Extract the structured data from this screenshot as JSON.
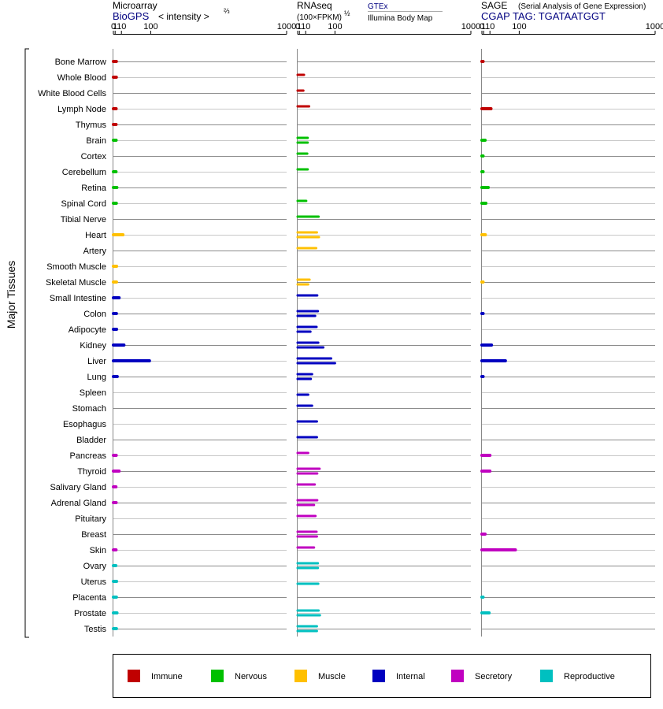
{
  "panels": [
    {
      "id": "microarray",
      "title": "Microarray",
      "subtitle": "BioGPS",
      "subtitle_extra": "< intensity >",
      "exponent": "⅔",
      "ticks": [
        "0",
        "1",
        "10",
        "100",
        "1000"
      ],
      "subtitle_color": "#000080"
    },
    {
      "id": "rnaseq",
      "title": "RNAseq",
      "subtitle": "(100×FPKM)",
      "exponent": "½",
      "source1": "GTEx",
      "source2": "Illumina Body Map",
      "ticks": [
        "0",
        "1",
        "10",
        "100",
        "1000"
      ]
    },
    {
      "id": "sage",
      "title": "SAGE",
      "title_note": "(Serial Analysis of Gene Expression)",
      "subtitle": "CGAP TAG: TGATAATGGT",
      "ticks": [
        "0",
        "1",
        "10",
        "100",
        "1000"
      ],
      "subtitle_color": "#000080"
    }
  ],
  "y_axis_label": "Major Tissues",
  "legend": [
    {
      "name": "Immune",
      "color": "#c00000"
    },
    {
      "name": "Nervous",
      "color": "#00c000"
    },
    {
      "name": "Muscle",
      "color": "#ffc000"
    },
    {
      "name": "Internal",
      "color": "#0000c0"
    },
    {
      "name": "Secretory",
      "color": "#c000c0"
    },
    {
      "name": "Reproductive",
      "color": "#00c0c0"
    }
  ],
  "chart_data": {
    "type": "bar",
    "orientation": "horizontal",
    "x_scale": "log-like (0, 1, 10, 100, 1000)",
    "xlim": [
      0,
      1000
    ],
    "categories": [
      "Bone Marrow",
      "Whole Blood",
      "White Blood Cells",
      "Lymph Node",
      "Thymus",
      "Brain",
      "Cortex",
      "Cerebellum",
      "Retina",
      "Spinal Cord",
      "Tibial Nerve",
      "Heart",
      "Artery",
      "Smooth Muscle",
      "Skeletal Muscle",
      "Small Intestine",
      "Colon",
      "Adipocyte",
      "Kidney",
      "Liver",
      "Lung",
      "Spleen",
      "Stomach",
      "Esophagus",
      "Bladder",
      "Pancreas",
      "Thyroid",
      "Salivary Gland",
      "Adrenal Gland",
      "Pituitary",
      "Breast",
      "Skin",
      "Ovary",
      "Uterus",
      "Placenta",
      "Prostate",
      "Testis"
    ],
    "category_groups": [
      "Immune",
      "Immune",
      "Immune",
      "Immune",
      "Immune",
      "Nervous",
      "Nervous",
      "Nervous",
      "Nervous",
      "Nervous",
      "Nervous",
      "Muscle",
      "Muscle",
      "Muscle",
      "Muscle",
      "Internal",
      "Internal",
      "Internal",
      "Internal",
      "Internal",
      "Internal",
      "Internal",
      "Internal",
      "Internal",
      "Internal",
      "Secretory",
      "Secretory",
      "Secretory",
      "Secretory",
      "Secretory",
      "Secretory",
      "Secretory",
      "Reproductive",
      "Reproductive",
      "Reproductive",
      "Reproductive",
      "Reproductive"
    ],
    "series": [
      {
        "name": "Microarray",
        "values": [
          2.2,
          2.2,
          null,
          2.0,
          1.9,
          2.0,
          null,
          1.9,
          2.8,
          2.2,
          null,
          13,
          null,
          2.5,
          2.4,
          6,
          2.3,
          2.5,
          15,
          95,
          3.3,
          null,
          null,
          null,
          null,
          2.1,
          6,
          1.8,
          2.0,
          null,
          null,
          1.9,
          1.7,
          2.5,
          2.3,
          3.0,
          2.3
        ]
      },
      {
        "name": "RNAseq GTEx",
        "values": [
          null,
          7,
          6,
          17,
          null,
          14,
          13,
          14,
          null,
          11,
          42,
          37,
          35,
          null,
          18,
          38,
          40,
          36,
          41,
          85,
          24,
          null,
          24,
          37,
          37,
          15,
          45,
          31,
          38,
          33,
          36,
          29,
          40,
          null,
          null,
          42,
          37
        ]
      },
      {
        "name": "RNAseq Illumina Body Map",
        "values": [
          null,
          null,
          null,
          null,
          null,
          14,
          null,
          null,
          null,
          null,
          null,
          43,
          null,
          null,
          15,
          null,
          32,
          20,
          57,
          100,
          21,
          15,
          null,
          null,
          null,
          null,
          38,
          null,
          29,
          null,
          37,
          null,
          40,
          41,
          null,
          46,
          37
        ]
      },
      {
        "name": "SAGE",
        "values": [
          0.15,
          null,
          null,
          12,
          null,
          2.5,
          0.05,
          0.1,
          7,
          3.5,
          null,
          2.8,
          null,
          null,
          0.05,
          null,
          0.1,
          null,
          13,
          50,
          0.1,
          null,
          null,
          null,
          null,
          10,
          10,
          null,
          null,
          null,
          2.5,
          85,
          null,
          null,
          0.1,
          8.5,
          null
        ]
      }
    ]
  }
}
